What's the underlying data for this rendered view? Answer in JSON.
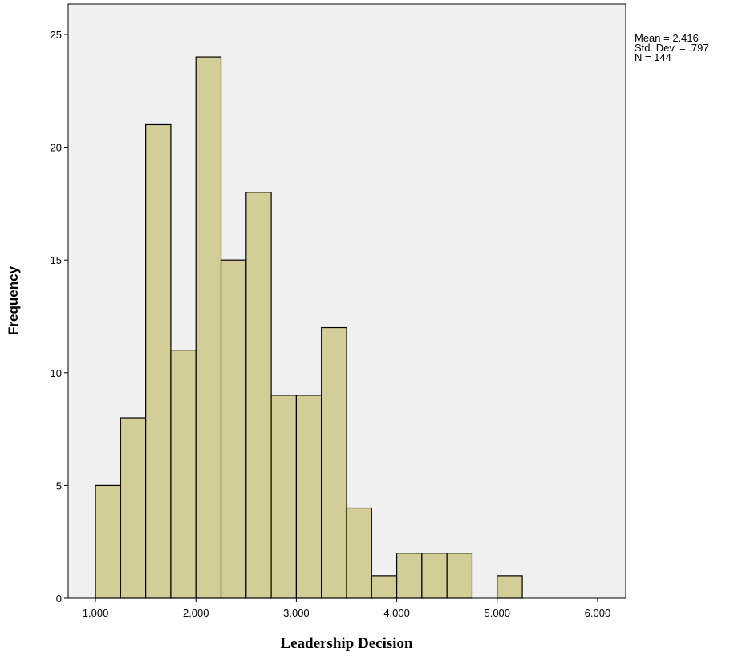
{
  "chart_data": {
    "type": "histogram",
    "xlabel": "Leadership Decision",
    "ylabel": "Frequency",
    "annotations": [
      "Mean = 2.416",
      "Std. Dev. = .797",
      "N = 144"
    ],
    "bins": [
      1.0,
      1.25,
      1.5,
      1.75,
      2.0,
      2.25,
      2.5,
      2.75,
      3.0,
      3.25,
      3.5,
      3.75,
      4.0,
      4.25,
      4.5,
      4.75,
      5.0,
      5.25
    ],
    "counts": [
      5,
      8,
      21,
      11,
      24,
      15,
      18,
      9,
      9,
      12,
      4,
      1,
      2,
      2,
      2,
      0,
      1
    ],
    "color": "#d3ce98",
    "edgecolor": "#000000",
    "background": "#f0f0f0",
    "xlim": [
      0.728,
      6.28
    ],
    "ylim": [
      0,
      26.35
    ],
    "xticks": [
      {
        "value": 1,
        "label": "1.000"
      },
      {
        "value": 2,
        "label": "2.000"
      },
      {
        "value": 3,
        "label": "3.000"
      },
      {
        "value": 4,
        "label": "4.000"
      },
      {
        "value": 5,
        "label": "5.000"
      },
      {
        "value": 6,
        "label": "6.000"
      }
    ],
    "yticks": [
      0,
      5,
      10,
      15,
      20,
      25
    ]
  }
}
